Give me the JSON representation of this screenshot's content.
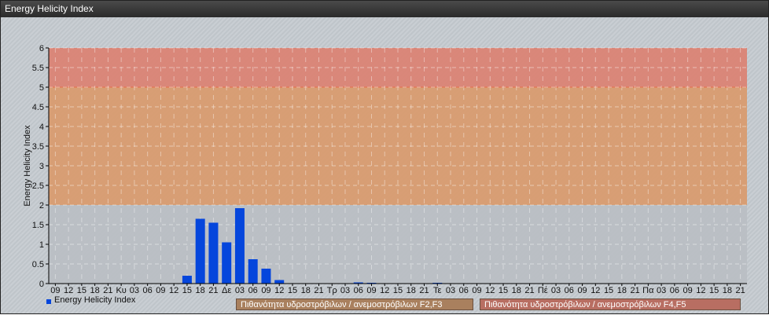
{
  "window": {
    "title": "Energy Helicity Index"
  },
  "chart_data": {
    "type": "bar",
    "title": "",
    "xlabel": "",
    "ylabel": "Energy Helicity Index",
    "ylim": [
      0,
      6
    ],
    "yticks": [
      "0",
      "0.5",
      "1",
      "1.5",
      "2",
      "2.5",
      "3",
      "3.5",
      "4",
      "4.5",
      "5",
      "5.5",
      "6"
    ],
    "grid": true,
    "legend_placement": "bottom-left",
    "categories": [
      "09",
      "12",
      "15",
      "18",
      "21",
      "Κυ",
      "03",
      "06",
      "09",
      "12",
      "15",
      "18",
      "21",
      "Δε",
      "03",
      "06",
      "09",
      "12",
      "15",
      "18",
      "21",
      "Τρ",
      "03",
      "06",
      "09",
      "12",
      "15",
      "18",
      "21",
      "Τε",
      "03",
      "06",
      "09",
      "12",
      "15",
      "18",
      "21",
      "Πέ",
      "03",
      "06",
      "09",
      "12",
      "15",
      "18",
      "21",
      "Πα",
      "03",
      "06",
      "09",
      "12",
      "15",
      "18",
      "21"
    ],
    "series": [
      {
        "name": "Energy Helicity Index",
        "color": "#0546dc",
        "values": [
          0.01,
          0.01,
          0.01,
          0.01,
          0.01,
          0.01,
          0.01,
          0.01,
          0.01,
          0.01,
          0.2,
          1.65,
          1.55,
          1.05,
          1.92,
          0.62,
          0.38,
          0.09,
          0.01,
          0.01,
          0.01,
          0.01,
          0.01,
          0.03,
          0.02,
          0.01,
          0.01,
          0.01,
          0.01,
          0.02,
          0.01,
          0.01,
          0.01,
          0.01,
          0.01,
          0.01,
          0.01,
          0.01,
          0.01,
          0.01,
          0.01,
          0.01,
          0.01,
          0.01,
          0.01,
          0.01,
          0.01,
          0.01,
          0.01,
          0.01,
          0.01,
          0.01,
          0.01
        ]
      }
    ],
    "bands": [
      {
        "from": 0,
        "to": 2,
        "color": "#b9bec3"
      },
      {
        "from": 2,
        "to": 5,
        "color": "#d9996a",
        "label": "Πιθανότητα υδροστρόβιλων / ανεμοστρόβιλων F2,F3",
        "label_color": "#a9805e"
      },
      {
        "from": 5,
        "to": 6,
        "color": "#dc8070",
        "label": "Πιθανότητα υδροστρόβιλων / ανεμοστρόβιλων F4,F5",
        "label_color": "#b86e62"
      }
    ]
  }
}
